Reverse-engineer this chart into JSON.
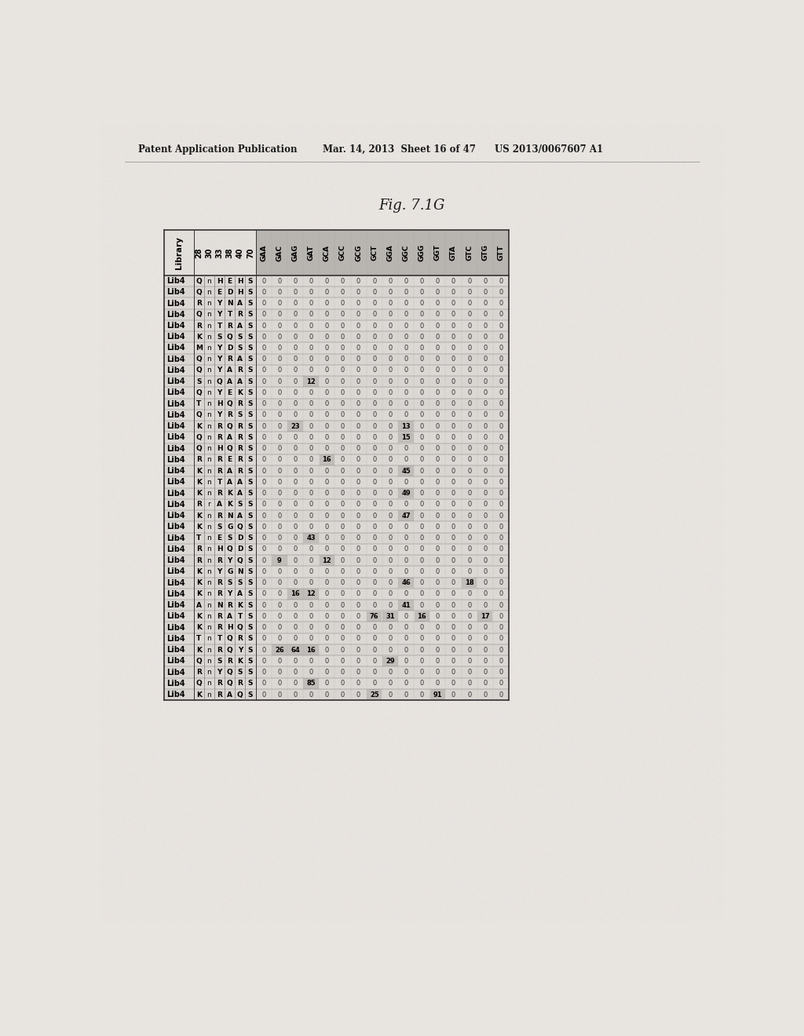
{
  "title": "Fig. 7.1G",
  "col_positions": [
    "28",
    "30",
    "33",
    "38",
    "40",
    "70"
  ],
  "dna_cols": [
    "GAA",
    "GAC",
    "GAG",
    "GAT",
    "GCA",
    "GCC",
    "GCG",
    "GCT",
    "GGA",
    "GGC",
    "GGG",
    "GGT",
    "GTA",
    "GTC",
    "GTG",
    "GTT"
  ],
  "rows": [
    [
      "Lib4",
      "Q",
      "n",
      "H",
      "E",
      "H",
      "S",
      "0",
      "0",
      "0",
      "0",
      "0",
      "0",
      "0",
      "0",
      "0",
      "0",
      "0",
      "0",
      "0",
      "0",
      "0",
      "0"
    ],
    [
      "Lib4",
      "Q",
      "n",
      "E",
      "D",
      "H",
      "S",
      "0",
      "0",
      "0",
      "0",
      "0",
      "0",
      "0",
      "0",
      "0",
      "0",
      "0",
      "0",
      "0",
      "0",
      "0",
      "0"
    ],
    [
      "Lib4",
      "R",
      "n",
      "Y",
      "N",
      "A",
      "S",
      "0",
      "0",
      "0",
      "0",
      "0",
      "0",
      "0",
      "0",
      "0",
      "0",
      "0",
      "0",
      "0",
      "0",
      "0",
      "0"
    ],
    [
      "Lib4",
      "Q",
      "n",
      "Y",
      "T",
      "R",
      "S",
      "0",
      "0",
      "0",
      "0",
      "0",
      "0",
      "0",
      "0",
      "0",
      "0",
      "0",
      "0",
      "0",
      "0",
      "0",
      "0"
    ],
    [
      "Lib4",
      "R",
      "n",
      "T",
      "R",
      "A",
      "S",
      "0",
      "0",
      "0",
      "0",
      "0",
      "0",
      "0",
      "0",
      "0",
      "0",
      "0",
      "0",
      "0",
      "0",
      "0",
      "0"
    ],
    [
      "Lib4",
      "K",
      "n",
      "S",
      "Q",
      "S",
      "S",
      "0",
      "0",
      "0",
      "0",
      "0",
      "0",
      "0",
      "0",
      "0",
      "0",
      "0",
      "0",
      "0",
      "0",
      "0",
      "0"
    ],
    [
      "Lib4",
      "M",
      "n",
      "Y",
      "D",
      "S",
      "S",
      "0",
      "0",
      "0",
      "0",
      "0",
      "0",
      "0",
      "0",
      "0",
      "0",
      "0",
      "0",
      "0",
      "0",
      "0",
      "0"
    ],
    [
      "Lib4",
      "Q",
      "n",
      "Y",
      "R",
      "A",
      "S",
      "0",
      "0",
      "0",
      "0",
      "0",
      "0",
      "0",
      "0",
      "0",
      "0",
      "0",
      "0",
      "0",
      "0",
      "0",
      "0"
    ],
    [
      "Lib4",
      "Q",
      "n",
      "Y",
      "A",
      "R",
      "S",
      "0",
      "0",
      "0",
      "0",
      "0",
      "0",
      "0",
      "0",
      "0",
      "0",
      "0",
      "0",
      "0",
      "0",
      "0",
      "0"
    ],
    [
      "Lib4",
      "S",
      "n",
      "Q",
      "A",
      "A",
      "S",
      "0",
      "0",
      "0",
      "12",
      "0",
      "0",
      "0",
      "0",
      "0",
      "0",
      "0",
      "0",
      "0",
      "0",
      "0",
      "0"
    ],
    [
      "Lib4",
      "Q",
      "n",
      "Y",
      "E",
      "K",
      "S",
      "0",
      "0",
      "0",
      "0",
      "0",
      "0",
      "0",
      "0",
      "0",
      "0",
      "0",
      "0",
      "0",
      "0",
      "0",
      "0"
    ],
    [
      "Lib4",
      "T",
      "n",
      "H",
      "Q",
      "R",
      "S",
      "0",
      "0",
      "0",
      "0",
      "0",
      "0",
      "0",
      "0",
      "0",
      "0",
      "0",
      "0",
      "0",
      "0",
      "0",
      "0"
    ],
    [
      "Lib4",
      "Q",
      "n",
      "Y",
      "R",
      "S",
      "S",
      "0",
      "0",
      "0",
      "0",
      "0",
      "0",
      "0",
      "0",
      "0",
      "0",
      "0",
      "0",
      "0",
      "0",
      "0",
      "0"
    ],
    [
      "Lib4",
      "K",
      "n",
      "R",
      "Q",
      "R",
      "S",
      "0",
      "0",
      "23",
      "0",
      "0",
      "0",
      "0",
      "0",
      "0",
      "13",
      "0",
      "0",
      "0",
      "0",
      "0",
      "0"
    ],
    [
      "Lib4",
      "Q",
      "n",
      "R",
      "A",
      "R",
      "S",
      "0",
      "0",
      "0",
      "0",
      "0",
      "0",
      "0",
      "0",
      "0",
      "15",
      "0",
      "0",
      "0",
      "0",
      "0",
      "0"
    ],
    [
      "Lib4",
      "Q",
      "n",
      "H",
      "Q",
      "R",
      "S",
      "0",
      "0",
      "0",
      "0",
      "0",
      "0",
      "0",
      "0",
      "0",
      "0",
      "0",
      "0",
      "0",
      "0",
      "0",
      "0"
    ],
    [
      "Lib4",
      "R",
      "n",
      "R",
      "E",
      "R",
      "S",
      "0",
      "0",
      "0",
      "0",
      "16",
      "0",
      "0",
      "0",
      "0",
      "0",
      "0",
      "0",
      "0",
      "0",
      "0",
      "0"
    ],
    [
      "Lib4",
      "K",
      "n",
      "R",
      "A",
      "R",
      "S",
      "0",
      "0",
      "0",
      "0",
      "0",
      "0",
      "0",
      "0",
      "0",
      "45",
      "0",
      "0",
      "0",
      "0",
      "0",
      "0"
    ],
    [
      "Lib4",
      "K",
      "n",
      "T",
      "A",
      "A",
      "S",
      "0",
      "0",
      "0",
      "0",
      "0",
      "0",
      "0",
      "0",
      "0",
      "0",
      "0",
      "0",
      "0",
      "0",
      "0",
      "0"
    ],
    [
      "Lib4",
      "K",
      "n",
      "R",
      "K",
      "A",
      "S",
      "0",
      "0",
      "0",
      "0",
      "0",
      "0",
      "0",
      "0",
      "0",
      "49",
      "0",
      "0",
      "0",
      "0",
      "0",
      "0"
    ],
    [
      "Lib4",
      "R",
      "r",
      "A",
      "K",
      "S",
      "S",
      "0",
      "0",
      "0",
      "0",
      "0",
      "0",
      "0",
      "0",
      "0",
      "0",
      "0",
      "0",
      "0",
      "0",
      "0",
      "0"
    ],
    [
      "Lib4",
      "K",
      "n",
      "R",
      "N",
      "A",
      "S",
      "0",
      "0",
      "0",
      "0",
      "0",
      "0",
      "0",
      "0",
      "0",
      "47",
      "0",
      "0",
      "0",
      "0",
      "0",
      "0"
    ],
    [
      "Lib4",
      "K",
      "n",
      "S",
      "G",
      "Q",
      "S",
      "0",
      "0",
      "0",
      "0",
      "0",
      "0",
      "0",
      "0",
      "0",
      "0",
      "0",
      "0",
      "0",
      "0",
      "0",
      "0"
    ],
    [
      "Lib4",
      "T",
      "n",
      "E",
      "S",
      "D",
      "S",
      "0",
      "0",
      "0",
      "43",
      "0",
      "0",
      "0",
      "0",
      "0",
      "0",
      "0",
      "0",
      "0",
      "0",
      "0",
      "0"
    ],
    [
      "Lib4",
      "R",
      "n",
      "H",
      "Q",
      "D",
      "S",
      "0",
      "0",
      "0",
      "0",
      "0",
      "0",
      "0",
      "0",
      "0",
      "0",
      "0",
      "0",
      "0",
      "0",
      "0",
      "0"
    ],
    [
      "Lib4",
      "R",
      "n",
      "R",
      "Y",
      "Q",
      "S",
      "0",
      "9",
      "0",
      "0",
      "12",
      "0",
      "0",
      "0",
      "0",
      "0",
      "0",
      "0",
      "0",
      "0",
      "0",
      "0"
    ],
    [
      "Lib4",
      "K",
      "n",
      "Y",
      "G",
      "N",
      "S",
      "0",
      "0",
      "0",
      "0",
      "0",
      "0",
      "0",
      "0",
      "0",
      "0",
      "0",
      "0",
      "0",
      "0",
      "0",
      "0"
    ],
    [
      "Lib4",
      "K",
      "n",
      "R",
      "S",
      "S",
      "S",
      "0",
      "0",
      "0",
      "0",
      "0",
      "0",
      "0",
      "0",
      "0",
      "46",
      "0",
      "0",
      "0",
      "18",
      "0",
      "0"
    ],
    [
      "Lib4",
      "K",
      "n",
      "R",
      "Y",
      "A",
      "S",
      "0",
      "0",
      "16",
      "12",
      "0",
      "0",
      "0",
      "0",
      "0",
      "0",
      "0",
      "0",
      "0",
      "0",
      "0",
      "0"
    ],
    [
      "Lib4",
      "A",
      "n",
      "N",
      "R",
      "K",
      "S",
      "0",
      "0",
      "0",
      "0",
      "0",
      "0",
      "0",
      "0",
      "0",
      "41",
      "0",
      "0",
      "0",
      "0",
      "0",
      "0"
    ],
    [
      "Lib4",
      "K",
      "n",
      "R",
      "A",
      "T",
      "S",
      "0",
      "0",
      "0",
      "0",
      "0",
      "0",
      "0",
      "76",
      "31",
      "0",
      "16",
      "0",
      "0",
      "0",
      "17",
      "0"
    ],
    [
      "Lib4",
      "K",
      "n",
      "R",
      "H",
      "Q",
      "S",
      "0",
      "0",
      "0",
      "0",
      "0",
      "0",
      "0",
      "0",
      "0",
      "0",
      "0",
      "0",
      "0",
      "0",
      "0",
      "0"
    ],
    [
      "Lib4",
      "T",
      "n",
      "T",
      "Q",
      "R",
      "S",
      "0",
      "0",
      "0",
      "0",
      "0",
      "0",
      "0",
      "0",
      "0",
      "0",
      "0",
      "0",
      "0",
      "0",
      "0",
      "0"
    ],
    [
      "Lib4",
      "K",
      "n",
      "R",
      "Q",
      "Y",
      "S",
      "0",
      "26",
      "64",
      "16",
      "0",
      "0",
      "0",
      "0",
      "0",
      "0",
      "0",
      "0",
      "0",
      "0",
      "0",
      "0"
    ],
    [
      "Lib4",
      "Q",
      "n",
      "S",
      "R",
      "K",
      "S",
      "0",
      "0",
      "0",
      "0",
      "0",
      "0",
      "0",
      "0",
      "29",
      "0",
      "0",
      "0",
      "0",
      "0",
      "0",
      "0"
    ],
    [
      "Lib4",
      "R",
      "n",
      "Y",
      "Q",
      "S",
      "S",
      "0",
      "0",
      "0",
      "0",
      "0",
      "0",
      "0",
      "0",
      "0",
      "0",
      "0",
      "0",
      "0",
      "0",
      "0",
      "0"
    ],
    [
      "Lib4",
      "Q",
      "n",
      "R",
      "Q",
      "R",
      "S",
      "0",
      "0",
      "0",
      "85",
      "0",
      "0",
      "0",
      "0",
      "0",
      "0",
      "0",
      "0",
      "0",
      "0",
      "0",
      "0"
    ],
    [
      "Lib4",
      "K",
      "n",
      "R",
      "A",
      "Q",
      "S",
      "0",
      "0",
      "0",
      "0",
      "0",
      "0",
      "0",
      "25",
      "0",
      "0",
      "0",
      "91",
      "0",
      "0",
      "0",
      "0"
    ]
  ],
  "bg_color": "#e8e4e0",
  "table_bg": "#dedad6",
  "header_bg": "#b8b4b0",
  "highlight_color": "#c0bcb8",
  "header_line_color": "#555555",
  "text_color": "#222222"
}
